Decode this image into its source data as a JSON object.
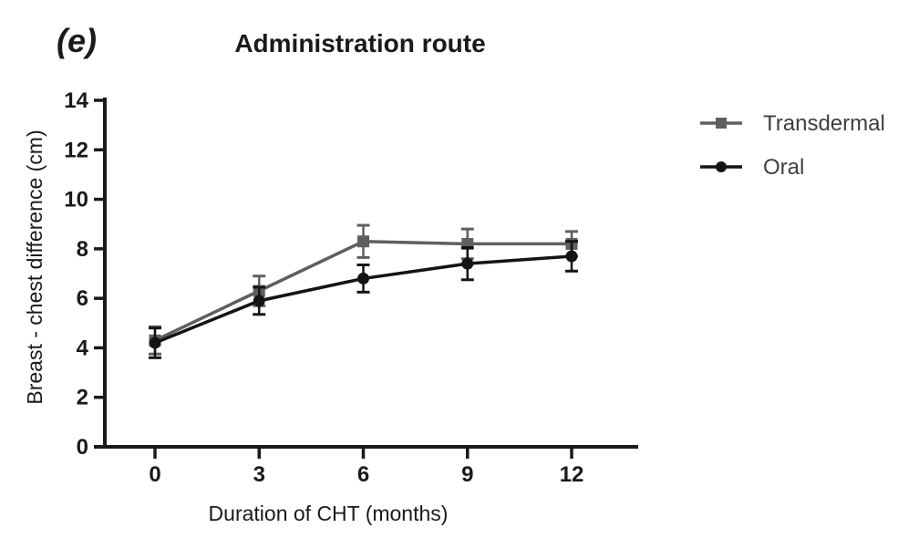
{
  "chart_data": {
    "type": "line",
    "panel_label": "(e)",
    "title": "Administration route",
    "xlabel": "Duration of CHT (months)",
    "ylabel": "Breast - chest difference (cm)",
    "x": [
      0,
      3,
      6,
      9,
      12
    ],
    "x_ticks": [
      0,
      3,
      6,
      9,
      12
    ],
    "y_ticks": [
      0,
      2,
      4,
      6,
      8,
      10,
      12,
      14
    ],
    "xlim": [
      0,
      12
    ],
    "ylim": [
      0,
      14
    ],
    "grid": false,
    "legend_position": "right",
    "axis_color": "#1a1a1a",
    "series": [
      {
        "name": "Transdermal",
        "marker": "square",
        "color": "#5f5f5f",
        "values": [
          4.3,
          6.3,
          8.3,
          8.2,
          8.2
        ],
        "errors": [
          0.55,
          0.6,
          0.65,
          0.6,
          0.5
        ]
      },
      {
        "name": "Oral",
        "marker": "circle",
        "color": "#141414",
        "values": [
          4.2,
          5.9,
          6.8,
          7.4,
          7.7
        ],
        "errors": [
          0.6,
          0.55,
          0.55,
          0.65,
          0.6
        ]
      }
    ]
  }
}
